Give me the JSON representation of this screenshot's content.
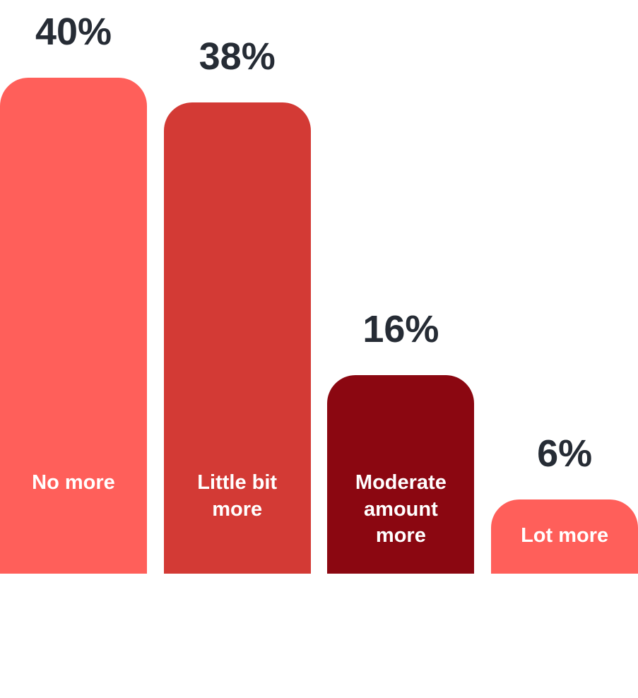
{
  "chart_data": {
    "type": "bar",
    "categories": [
      "No more",
      "Little bit more",
      "Moderate amount more",
      "Lot more"
    ],
    "values": [
      40,
      38,
      16,
      6
    ],
    "value_labels": [
      "40%",
      "38%",
      "16%",
      "6%"
    ],
    "colors": [
      "#ff5f5a",
      "#d33a35",
      "#8b0711",
      "#ff5f5a"
    ]
  }
}
